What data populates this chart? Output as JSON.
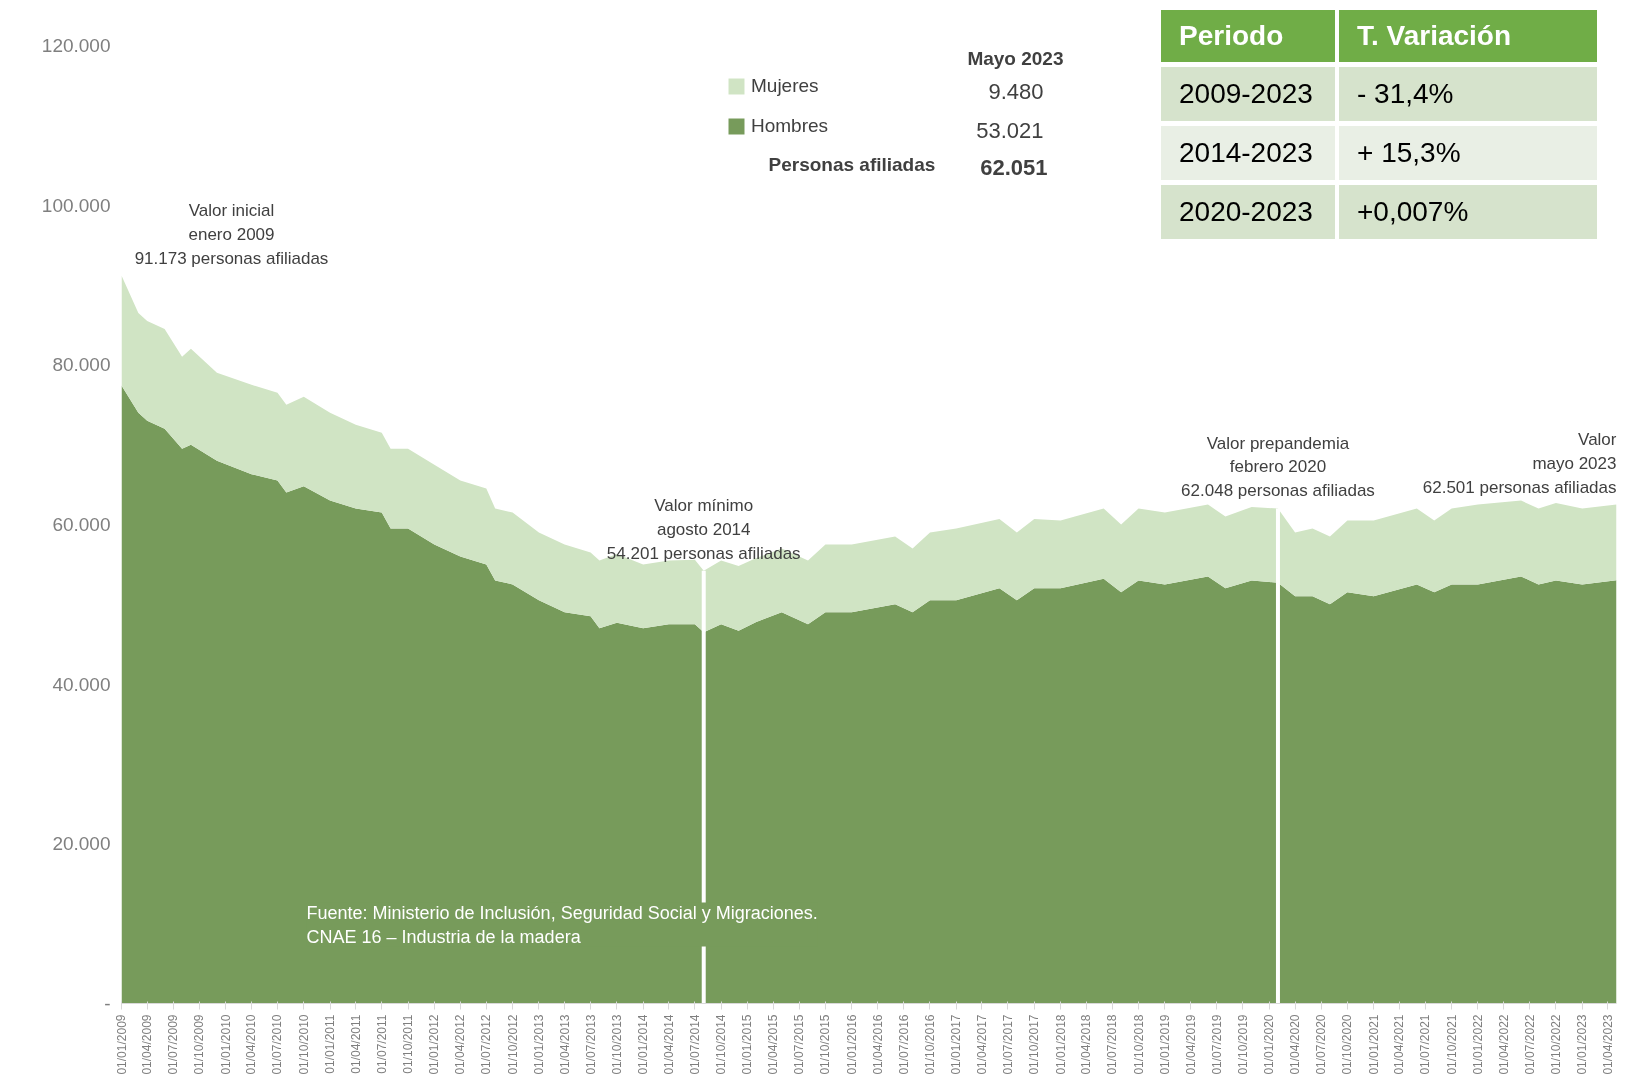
{
  "chart_data": {
    "type": "area",
    "stacked": true,
    "legend": "top",
    "legend_title": "Mayo 2023",
    "xlim": [
      "2009-01",
      "2023-05"
    ],
    "ylim": [
      0,
      120000
    ],
    "yticks": [
      {
        "value": 0,
        "label": "-"
      },
      {
        "value": 20000,
        "label": "20.000"
      },
      {
        "value": 40000,
        "label": "40.000"
      },
      {
        "value": 60000,
        "label": "60.000"
      },
      {
        "value": 80000,
        "label": "80.000"
      },
      {
        "value": 100000,
        "label": "100.000"
      },
      {
        "value": 120000,
        "label": "120.000"
      }
    ],
    "xticks": [
      {
        "value": "2009-01",
        "label": "01/01/2009"
      },
      {
        "value": "2009-04",
        "label": "01/04/2009"
      },
      {
        "value": "2009-07",
        "label": "01/07/2009"
      },
      {
        "value": "2009-10",
        "label": "01/10/2009"
      },
      {
        "value": "2010-01",
        "label": "01/01/2010"
      },
      {
        "value": "2010-04",
        "label": "01/04/2010"
      },
      {
        "value": "2010-07",
        "label": "01/07/2010"
      },
      {
        "value": "2010-10",
        "label": "01/10/2010"
      },
      {
        "value": "2011-01",
        "label": "01/01/2011"
      },
      {
        "value": "2011-04",
        "label": "01/04/2011"
      },
      {
        "value": "2011-07",
        "label": "01/07/2011"
      },
      {
        "value": "2011-10",
        "label": "01/10/2011"
      },
      {
        "value": "2012-01",
        "label": "01/01/2012"
      },
      {
        "value": "2012-04",
        "label": "01/04/2012"
      },
      {
        "value": "2012-07",
        "label": "01/07/2012"
      },
      {
        "value": "2012-10",
        "label": "01/10/2012"
      },
      {
        "value": "2013-01",
        "label": "01/01/2013"
      },
      {
        "value": "2013-04",
        "label": "01/04/2013"
      },
      {
        "value": "2013-07",
        "label": "01/07/2013"
      },
      {
        "value": "2013-10",
        "label": "01/10/2013"
      },
      {
        "value": "2014-01",
        "label": "01/01/2014"
      },
      {
        "value": "2014-04",
        "label": "01/04/2014"
      },
      {
        "value": "2014-07",
        "label": "01/07/2014"
      },
      {
        "value": "2014-10",
        "label": "01/10/2014"
      },
      {
        "value": "2015-01",
        "label": "01/01/2015"
      },
      {
        "value": "2015-04",
        "label": "01/04/2015"
      },
      {
        "value": "2015-07",
        "label": "01/07/2015"
      },
      {
        "value": "2015-10",
        "label": "01/10/2015"
      },
      {
        "value": "2016-01",
        "label": "01/01/2016"
      },
      {
        "value": "2016-04",
        "label": "01/04/2016"
      },
      {
        "value": "2016-07",
        "label": "01/07/2016"
      },
      {
        "value": "2016-10",
        "label": "01/10/2016"
      },
      {
        "value": "2017-01",
        "label": "01/01/2017"
      },
      {
        "value": "2017-04",
        "label": "01/04/2017"
      },
      {
        "value": "2017-07",
        "label": "01/07/2017"
      },
      {
        "value": "2017-10",
        "label": "01/10/2017"
      },
      {
        "value": "2018-01",
        "label": "01/01/2018"
      },
      {
        "value": "2018-04",
        "label": "01/04/2018"
      },
      {
        "value": "2018-07",
        "label": "01/07/2018"
      },
      {
        "value": "2018-10",
        "label": "01/10/2018"
      },
      {
        "value": "2019-01",
        "label": "01/01/2019"
      },
      {
        "value": "2019-04",
        "label": "01/04/2019"
      },
      {
        "value": "2019-07",
        "label": "01/07/2019"
      },
      {
        "value": "2019-10",
        "label": "01/10/2019"
      },
      {
        "value": "2020-01",
        "label": "01/01/2020"
      },
      {
        "value": "2020-04",
        "label": "01/04/2020"
      },
      {
        "value": "2020-07",
        "label": "01/07/2020"
      },
      {
        "value": "2020-10",
        "label": "01/10/2020"
      },
      {
        "value": "2021-01",
        "label": "01/01/2021"
      },
      {
        "value": "2021-04",
        "label": "01/04/2021"
      },
      {
        "value": "2021-07",
        "label": "01/07/2021"
      },
      {
        "value": "2021-10",
        "label": "01/10/2021"
      },
      {
        "value": "2022-01",
        "label": "01/01/2022"
      },
      {
        "value": "2022-04",
        "label": "01/04/2022"
      },
      {
        "value": "2022-07",
        "label": "01/07/2022"
      },
      {
        "value": "2022-10",
        "label": "01/10/2022"
      },
      {
        "value": "2023-01",
        "label": "01/01/2023"
      },
      {
        "value": "2023-04",
        "label": "01/04/2023"
      }
    ],
    "x": [
      "2009-01",
      "2009-03",
      "2009-04",
      "2009-06",
      "2009-08",
      "2009-09",
      "2009-12",
      "2010-04",
      "2010-07",
      "2010-08",
      "2010-10",
      "2011-01",
      "2011-04",
      "2011-07",
      "2011-08",
      "2011-10",
      "2012-01",
      "2012-04",
      "2012-07",
      "2012-08",
      "2012-10",
      "2013-01",
      "2013-04",
      "2013-07",
      "2013-08",
      "2013-10",
      "2014-01",
      "2014-04",
      "2014-07",
      "2014-08",
      "2014-10",
      "2014-12",
      "2015-02",
      "2015-05",
      "2015-08",
      "2015-10",
      "2016-01",
      "2016-06",
      "2016-08",
      "2016-10",
      "2017-01",
      "2017-06",
      "2017-08",
      "2017-10",
      "2018-01",
      "2018-06",
      "2018-08",
      "2018-10",
      "2019-01",
      "2019-06",
      "2019-08",
      "2019-11",
      "2020-02",
      "2020-04",
      "2020-06",
      "2020-08",
      "2020-10",
      "2021-01",
      "2021-06",
      "2021-08",
      "2021-10",
      "2022-01",
      "2022-06",
      "2022-08",
      "2022-10",
      "2023-01",
      "2023-05"
    ],
    "series": [
      {
        "name": "Hombres",
        "color": "#779b5b",
        "values": [
          77400,
          74000,
          73000,
          72000,
          69500,
          70000,
          68000,
          66300,
          65500,
          64000,
          64800,
          63000,
          62000,
          61500,
          59500,
          59500,
          57500,
          56000,
          55000,
          53000,
          52500,
          50500,
          49000,
          48500,
          47000,
          47700,
          47000,
          47500,
          47500,
          46500,
          47500,
          46700,
          47800,
          49000,
          47500,
          49000,
          49000,
          50000,
          49000,
          50500,
          50500,
          52000,
          50500,
          52000,
          52000,
          53200,
          51500,
          53000,
          52500,
          53500,
          52000,
          53000,
          52700,
          51000,
          51000,
          50000,
          51500,
          51000,
          52500,
          51500,
          52500,
          52500,
          53500,
          52500,
          53000,
          52500,
          53021
        ]
      },
      {
        "name": "Mujeres",
        "color": "#d0e4c4",
        "values": [
          13800,
          12500,
          12500,
          12500,
          11500,
          12000,
          11000,
          11200,
          11000,
          11000,
          11200,
          11000,
          10500,
          10000,
          10000,
          10000,
          10000,
          9500,
          9500,
          9000,
          9000,
          8500,
          8500,
          8000,
          8500,
          8600,
          8000,
          8000,
          8100,
          7700,
          8000,
          8100,
          8000,
          8000,
          8000,
          8500,
          8500,
          8500,
          8000,
          8500,
          9000,
          8700,
          8500,
          8700,
          8500,
          8800,
          8500,
          9000,
          9000,
          9000,
          9000,
          9200,
          9300,
          8000,
          8500,
          8500,
          9000,
          9500,
          9500,
          9000,
          9500,
          10000,
          9500,
          9500,
          9700,
          9500,
          9480
        ]
      }
    ],
    "ref_lines": [
      {
        "axis": "x",
        "value": "2014-08",
        "color": "#ffffff"
      },
      {
        "axis": "x",
        "value": "2020-02",
        "color": "#ffffff"
      }
    ],
    "annotations": [
      {
        "text": "Valor inicial\nenero 2009\n91.173 personas afiliadas",
        "x": "2009-01",
        "y": 91173
      },
      {
        "text": "Valor mínimo\nagosto 2014\n54.201 personas afiliadas",
        "x": "2014-08",
        "y": 54201
      },
      {
        "text": "Valor prepandemia\nfebrero 2020\n62.048 personas afiliadas",
        "x": "2020-02",
        "y": 62048
      },
      {
        "text": "Valor\nmayo 2023\n62.501 personas afiliadas",
        "x": "2023-05",
        "y": 62501
      },
      "Fuente: Ministerio de Inclusión, Seguridad Social y Migraciones.\nCNAE 16 – Industria de la madera",
      "9.480",
      "53.021",
      "Personas afiliadas",
      "62.051",
      "Periodo",
      "T. Variación",
      "2009-2023",
      "- 31,4%",
      "2014-2023",
      "+ 15,3%",
      "2020-2023",
      "+0,007%"
    ]
  }
}
